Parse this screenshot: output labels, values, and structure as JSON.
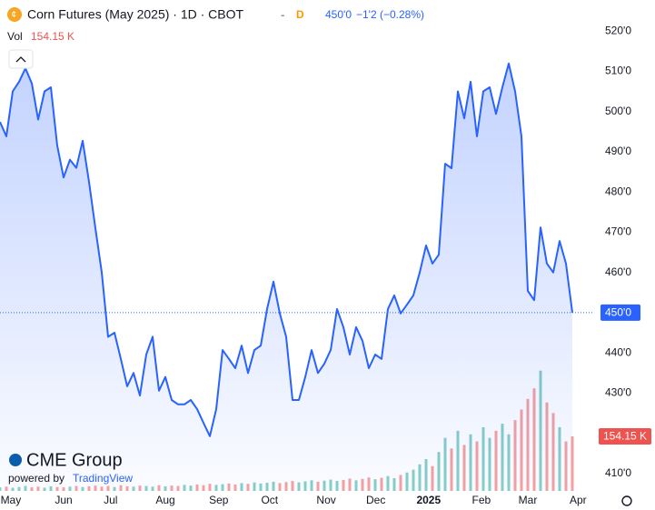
{
  "header": {
    "title": "Corn Futures (May 2025) · 1D · CBOT",
    "separator": "-",
    "source_flag": "D",
    "price_change": "−1'2 (−0.28%)",
    "vol_label": "Vol"
  },
  "branding": {
    "logo": "CME Group",
    "powered_by": "powered by",
    "platform": "TradingView"
  },
  "chart_data": {
    "type": "line",
    "color": "#2962ff",
    "last": {
      "value": 450,
      "label": "450'0"
    },
    "values": [
      497.4,
      493.8,
      505,
      507.4,
      510.7,
      507,
      498,
      505,
      506,
      491.5,
      483.6,
      488,
      486,
      492.7,
      482.5,
      471,
      460,
      444,
      445,
      438.5,
      431.7,
      435,
      429.4,
      439.6,
      444,
      430.6,
      434,
      428.3,
      427.2,
      427.2,
      428.3,
      426,
      422.6,
      419.3,
      426,
      440.7,
      438.5,
      436.2,
      441.8,
      435,
      440.7,
      441.8,
      450.9,
      457.7,
      449.8,
      444,
      428.3,
      428.3,
      434,
      440.7,
      435,
      437.3,
      440.7,
      450.9,
      446.4,
      439.6,
      446.4,
      443,
      436.2,
      439.6,
      438.5,
      450.9,
      454.3,
      449.8,
      452,
      454.3,
      460,
      466.7,
      462.2,
      464.4,
      487,
      485.9,
      505,
      498.3,
      507.4,
      493.8,
      505,
      506,
      499.4,
      506,
      511.9,
      505,
      493.8,
      455.4,
      453.1,
      471.2,
      462.2,
      460,
      467.8,
      462.2,
      450
    ],
    "volume": [
      10,
      12,
      9,
      11,
      14,
      10,
      12,
      9,
      13,
      11,
      10,
      12,
      14,
      11,
      13,
      15,
      12,
      14,
      11,
      16,
      13,
      12,
      15,
      14,
      12,
      16,
      13,
      15,
      14,
      17,
      15,
      18,
      16,
      20,
      17,
      19,
      21,
      18,
      22,
      20,
      24,
      21,
      23,
      26,
      22,
      25,
      28,
      24,
      27,
      30,
      26,
      29,
      32,
      28,
      31,
      35,
      30,
      34,
      38,
      33,
      37,
      42,
      36,
      45,
      52,
      60,
      75,
      90,
      70,
      110,
      150,
      120,
      170,
      130,
      160,
      140,
      180,
      150,
      170,
      190,
      160,
      200,
      230,
      260,
      290,
      340,
      250,
      220,
      180,
      140,
      154.15
    ],
    "volume_label": "154.15 K",
    "volume_colors": {
      "up": "#26a69a",
      "down": "#ef5350"
    },
    "xlim": [
      0,
      92
    ],
    "xticks": [
      {
        "value": 1.7,
        "label": "May"
      },
      {
        "value": 10,
        "label": "Jun"
      },
      {
        "value": 17.4,
        "label": "Jul"
      },
      {
        "value": 26,
        "label": "Aug"
      },
      {
        "value": 34.4,
        "label": "Sep"
      },
      {
        "value": 42.4,
        "label": "Oct"
      },
      {
        "value": 51.3,
        "label": "Nov"
      },
      {
        "value": 59.1,
        "label": "Dec"
      },
      {
        "value": 67.4,
        "label": "2025"
      },
      {
        "value": 75.7,
        "label": "Feb"
      },
      {
        "value": 83,
        "label": "Mar"
      },
      {
        "value": 90.9,
        "label": "Apr"
      }
    ],
    "ylim": [
      405.7,
      527.7
    ],
    "yticks": [
      {
        "value": 410,
        "label": "410'0"
      },
      {
        "value": 420,
        "label": "420'0"
      },
      {
        "value": 430,
        "label": "430'0"
      },
      {
        "value": 440,
        "label": "440'0"
      },
      {
        "value": 450,
        "label": "450'0"
      },
      {
        "value": 460,
        "label": "460'0"
      },
      {
        "value": 470,
        "label": "470'0"
      },
      {
        "value": 480,
        "label": "480'0"
      },
      {
        "value": 490,
        "label": "490'0"
      },
      {
        "value": 500,
        "label": "500'0"
      },
      {
        "value": 510,
        "label": "510'0"
      },
      {
        "value": 520,
        "label": "520'0"
      }
    ],
    "grid": false
  }
}
